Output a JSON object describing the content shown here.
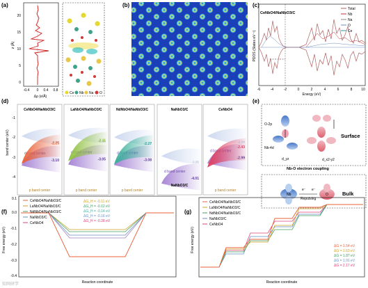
{
  "panel_labels": {
    "a": "(a)",
    "b": "(b)",
    "c": "(c)",
    "d": "(d)",
    "e": "(e)",
    "f": "(f)",
    "g": "(g)"
  },
  "panel_a": {
    "ylabel": "z (Å)",
    "xlabel": "Δρ (e/Å)",
    "yticks": [
      "0",
      "5",
      "10",
      "15",
      "20"
    ],
    "xticks": [
      "-0.4",
      "0",
      "0.4",
      "0.8"
    ],
    "legend": [
      {
        "label": "Ce",
        "color": "#e6d830"
      },
      {
        "label": "Nb",
        "color": "#3fa38a"
      },
      {
        "label": "Na",
        "color": "#e8c84a"
      },
      {
        "label": "O",
        "color": "#d23a3a"
      }
    ]
  },
  "panel_c": {
    "title": "CeNbO4/NaNbO3/C",
    "ylabel": "PDOS (States eV⁻¹)",
    "xlabel": "Energy (eV)",
    "xticks": [
      "-6",
      "-4",
      "-2",
      "0",
      "2",
      "4",
      "6",
      "8",
      "10"
    ],
    "legend": [
      {
        "label": "Total",
        "color": "#b06060"
      },
      {
        "label": "Nb",
        "color": "#c03030"
      },
      {
        "label": "Na",
        "color": "#8a8a8a"
      },
      {
        "label": "O",
        "color": "#6a8fc0"
      },
      {
        "label": "Ce",
        "color": "#2a9a9a"
      }
    ]
  },
  "panel_d": {
    "ylabel": "band center (eV)",
    "yticks": [
      "-1",
      "-2",
      "-3",
      "-4"
    ],
    "columns": [
      {
        "title": "CeNbO4/NaNbO3/C",
        "d_value": "-3.10",
        "p_value": "-2.25",
        "p_faint": "-2.05",
        "d_label": "d band center",
        "p_label": "p band center",
        "p_color": "#e8623a",
        "d_color": "#9d78d0"
      },
      {
        "title": "LaNbO4/NaNbO3/C",
        "d_value": "-3.05",
        "p_value": "-2.11",
        "p_faint": "-2.00",
        "d_label": "d band center",
        "p_label": "p band center",
        "p_color": "#90c040",
        "d_color": "#9d78d0"
      },
      {
        "title": "NdNbO4/NaNbO3/C",
        "d_value": "-3.08",
        "p_value": "-2.27",
        "p_faint": "-2.10",
        "d_label": "d band center",
        "p_label": "p band center",
        "p_color": "#3ab09a",
        "d_color": "#9d78d0"
      },
      {
        "title": "NaNbO3/C",
        "d_value": "-4.01",
        "p_value": "",
        "p_faint": "-3.05",
        "d_label": "d band center",
        "p_label": "",
        "p_color": "#a8c8e8",
        "d_color": "#9d78d0"
      },
      {
        "title": "CeNbO4",
        "d_value": "-2.99",
        "p_value": "-2.43",
        "p_faint": "-2.04",
        "d_label": "d band center",
        "p_label": "p band center",
        "p_color": "#e04060",
        "d_color": "#9d78d0"
      }
    ]
  },
  "panel_e": {
    "surface": "Surface",
    "bulk": "Bulk",
    "o2p": "O-2p",
    "nb4d": "Nb-4d",
    "dyz": "d_yz",
    "dx2y2": "d_x2-y2",
    "coupling": "Nb-O electron coupling",
    "nb": "Nb",
    "o": "O",
    "e1": "e⁻",
    "e2": "e⁻",
    "repulsing": "Repulsing"
  },
  "panel_f": {
    "ylabel": "Free energy (eV)",
    "xlabel": "Reaction coordinate",
    "yticks": [
      "0.1",
      "0.0",
      "-0.1",
      "-0.2",
      "-0.3",
      "-0.4"
    ],
    "legend": [
      {
        "label": "CeNbO4/NaNbO3/C",
        "color": "#e8623a"
      },
      {
        "label": "LaNbO4/NaNbO3/C",
        "color": "#d0a020"
      },
      {
        "label": "NdNbO4/NaNbO3/C",
        "color": "#40a060"
      },
      {
        "label": "NaNbO3/C",
        "color": "#6a8fc0"
      },
      {
        "label": "CeNbO4",
        "color": "#e0407a"
      }
    ],
    "values": [
      {
        "text": "ΔG_H = -0.11 eV",
        "color": "#d0a020"
      },
      {
        "text": "ΔG_H = -0.12 eV",
        "color": "#40a060"
      },
      {
        "text": "ΔG_H = -0.14 eV",
        "color": "#40b0a0"
      },
      {
        "text": "ΔG_H = -0.16 eV",
        "color": "#6a8fc0"
      },
      {
        "text": "ΔG_H = -0.28 eV",
        "color": "#e0407a"
      }
    ]
  },
  "panel_g": {
    "ylabel": "Free energy (eV)",
    "xlabel": "Reaction coordinate",
    "legend": [
      {
        "label": "CeNbO4/NaNbO3/C",
        "color": "#e8623a"
      },
      {
        "label": "LaNbO4/NaNbO3/C",
        "color": "#d0a020"
      },
      {
        "label": "NdNbO4/NaNbO3/C",
        "color": "#40a060"
      },
      {
        "label": "NaNbO3/C",
        "color": "#6a8fc0"
      },
      {
        "label": "CeNbO4",
        "color": "#e0407a"
      }
    ],
    "values": [
      {
        "text": "ΔG = 1.54 eV",
        "color": "#e8623a"
      },
      {
        "text": "ΔG = 1.63 eV",
        "color": "#d0a020"
      },
      {
        "text": "ΔG = 1.87 eV",
        "color": "#40a060"
      },
      {
        "text": "ΔG = 1.91 eV",
        "color": "#6a8fc0"
      },
      {
        "text": "ΔG = 2.17 eV",
        "color": "#e0407a"
      }
    ]
  },
  "watermark": "知网研学"
}
